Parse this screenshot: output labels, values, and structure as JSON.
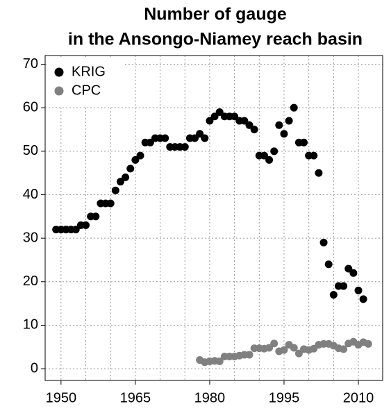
{
  "chart_data": {
    "type": "scatter",
    "title": [
      "Number of gauge",
      "in the Ansongo-Niamey reach basin"
    ],
    "series": [
      {
        "name": "KRIG",
        "color": "#000000",
        "x": [
          1949,
          1950,
          1951,
          1952,
          1953,
          1954,
          1955,
          1956,
          1957,
          1958,
          1959,
          1960,
          1961,
          1962,
          1963,
          1964,
          1965,
          1966,
          1967,
          1968,
          1969,
          1970,
          1971,
          1972,
          1973,
          1974,
          1975,
          1976,
          1977,
          1978,
          1979,
          1980,
          1981,
          1982,
          1983,
          1984,
          1985,
          1986,
          1987,
          1988,
          1989,
          1990,
          1991,
          1992,
          1993,
          1994,
          1995,
          1996,
          1997,
          1998,
          1999,
          2000,
          2001,
          2002,
          2003,
          2004,
          2005,
          2006,
          2007,
          2008,
          2009,
          2010,
          2011
        ],
        "values": [
          32,
          32,
          32,
          32,
          32,
          33,
          33,
          35,
          35,
          38,
          38,
          38,
          41,
          43,
          44,
          46,
          48,
          49,
          52,
          52,
          53,
          53,
          53,
          51,
          51,
          51,
          51,
          53,
          53,
          54,
          53,
          57,
          58,
          59,
          58,
          58,
          58,
          57,
          57,
          56,
          55,
          49,
          49,
          48,
          50,
          56,
          54,
          57,
          60,
          52,
          52,
          49,
          49,
          45,
          29,
          24,
          17,
          19,
          19,
          23,
          22,
          18,
          16
        ]
      },
      {
        "name": "CPC",
        "color": "#808080",
        "x": [
          1978,
          1979,
          1980,
          1981,
          1982,
          1983,
          1984,
          1985,
          1986,
          1987,
          1988,
          1989,
          1990,
          1991,
          1992,
          1993,
          1994,
          1995,
          1996,
          1997,
          1998,
          1999,
          2000,
          2001,
          2002,
          2003,
          2004,
          2005,
          2006,
          2007,
          2008,
          2009,
          2010,
          2011,
          2012
        ],
        "values": [
          2,
          1.5,
          1.7,
          1.8,
          1.7,
          2.8,
          2.8,
          2.8,
          3,
          3.2,
          3.2,
          4.7,
          4.7,
          4.6,
          4.8,
          5.8,
          4,
          4.3,
          5.5,
          4.8,
          3.5,
          4.5,
          4.3,
          4.6,
          5.5,
          5.7,
          5.7,
          5.3,
          4.7,
          4.5,
          5.8,
          6.2,
          5.5,
          6.1,
          5.7
        ]
      }
    ],
    "xlim": [
      1946.8,
      2014.9
    ],
    "ylim": [
      -2.7,
      72
    ],
    "xticks": [
      1950,
      1965,
      1980,
      1995,
      2010
    ],
    "xgrid": [
      1950,
      1955,
      1960,
      1965,
      1970,
      1975,
      1980,
      1985,
      1990,
      1995,
      2000,
      2005,
      2010
    ],
    "yticks": [
      0,
      10,
      20,
      30,
      40,
      50,
      60,
      70
    ],
    "grid": true,
    "legend": "top-left"
  }
}
